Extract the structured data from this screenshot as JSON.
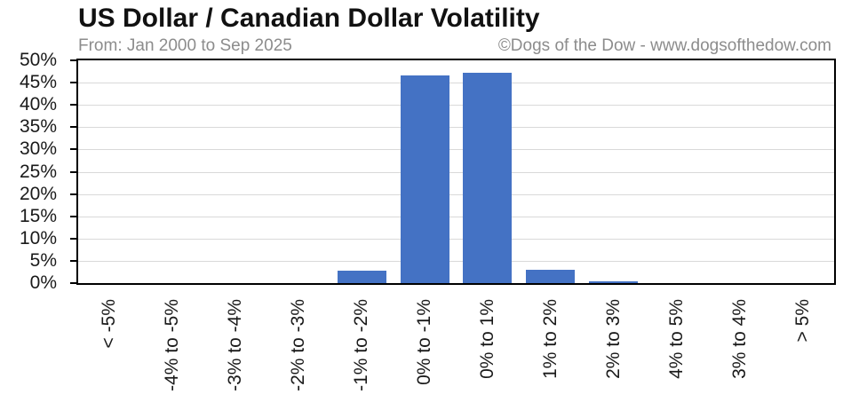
{
  "header": {
    "title": "US Dollar / Canadian Dollar Volatility",
    "subtitle_left": "From: Jan 2000 to Sep 2025",
    "subtitle_right": "©Dogs of the Dow - www.dogsofthedow.com"
  },
  "colors": {
    "bar": "#4472C4",
    "title_text": "#111111",
    "subtitle_text": "#8c8c8c",
    "gridline": "#d9d9d9",
    "axis": "#000000",
    "background": "#ffffff"
  },
  "chart_data": {
    "type": "bar",
    "title": "US Dollar / Canadian Dollar Volatility",
    "subtitle": "From: Jan 2000 to Sep 2025",
    "source": "©Dogs of the Dow - www.dogsofthedow.com",
    "categories": [
      "< -5%",
      "-4% to -5%",
      "-3% to -4%",
      "-2% to -3%",
      "-1% to -2%",
      "0% to -1%",
      "0% to 1%",
      "1% to 2%",
      "2% to 3%",
      "4% to 5%",
      "3% to 4%",
      "> 5%"
    ],
    "values": [
      0,
      0,
      0,
      0,
      2.8,
      46.7,
      47.2,
      2.9,
      0.3,
      0,
      0,
      0
    ],
    "xlabel": "",
    "ylabel": "",
    "ylim": [
      0,
      50
    ],
    "ytick_step": 5,
    "ytick_labels": [
      "0%",
      "5%",
      "10%",
      "15%",
      "20%",
      "25%",
      "30%",
      "35%",
      "40%",
      "45%",
      "50%"
    ],
    "grid": true,
    "legend_position": "none",
    "bar_color": "#4472C4"
  }
}
